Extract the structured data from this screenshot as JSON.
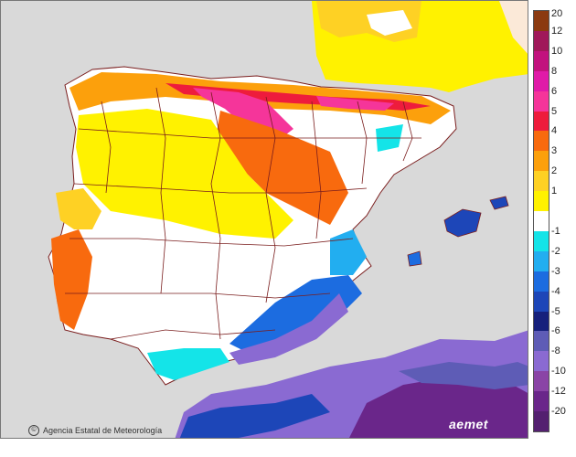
{
  "legend": {
    "classes": [
      {
        "label": "20",
        "color": "#8b3a10"
      },
      {
        "label": "12",
        "color": "#a0185a"
      },
      {
        "label": "10",
        "color": "#c2127e"
      },
      {
        "label": "8",
        "color": "#e01aa8"
      },
      {
        "label": "6",
        "color": "#f5359a"
      },
      {
        "label": "5",
        "color": "#ee1c3c"
      },
      {
        "label": "4",
        "color": "#f86a0e"
      },
      {
        "label": "3",
        "color": "#fca00c"
      },
      {
        "label": "2",
        "color": "#fed124"
      },
      {
        "label": "1",
        "color": "#fff200"
      },
      {
        "label": "",
        "color": "#ffffff"
      },
      {
        "label": "-1",
        "color": "#14e4e8"
      },
      {
        "label": "-2",
        "color": "#22aef0"
      },
      {
        "label": "-3",
        "color": "#1c6ce0"
      },
      {
        "label": "-4",
        "color": "#1d46b8"
      },
      {
        "label": "-5",
        "color": "#16207c"
      },
      {
        "label": "-6",
        "color": "#5e5cb6"
      },
      {
        "label": "-8",
        "color": "#8a6ad2"
      },
      {
        "label": "-10",
        "color": "#8a44a6"
      },
      {
        "label": "-12",
        "color": "#6a268a"
      },
      {
        "label": "-20",
        "color": "#542070"
      }
    ]
  },
  "credit": {
    "text": "Agencia Estatal de Meteorología",
    "icon_symbol": "©"
  },
  "brand": {
    "text": "aemet"
  },
  "colors": {
    "sea": "#d9d9d9",
    "border": "#7a1d1d"
  }
}
